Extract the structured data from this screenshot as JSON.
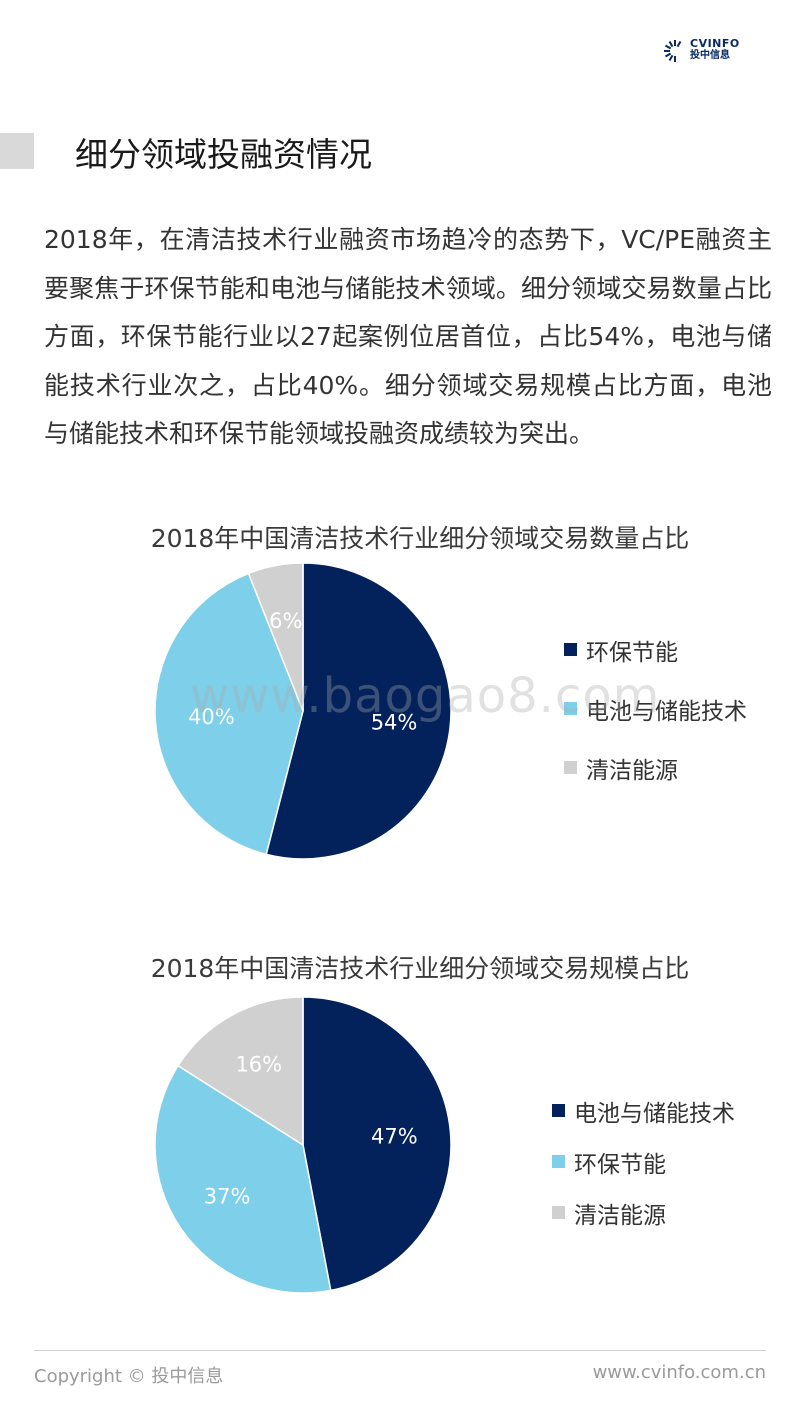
{
  "header": {
    "logo_en": "CVINFO",
    "logo_cn": "投中信息",
    "logo_icon": "cvinfo-logo-icon"
  },
  "section": {
    "title": "细分领域投融资情况",
    "paragraph": "2018年，在清洁技术行业融资市场趋冷的态势下，VC/PE融资主要聚焦于环保节能和电池与储能技术领域。细分领域交易数量占比方面，环保节能行业以27起案例位居首位，占比54%，电池与储能技术行业次之，占比40%。细分领域交易规模占比方面，电池与储能技术和环保节能领域投融资成绩较为突出。"
  },
  "watermark": "www.baogao8.com",
  "footer": {
    "copyright": "Copyright © 投中信息",
    "website": "www.cvinfo.com.cn"
  },
  "chart_data": [
    {
      "type": "pie",
      "title": "2018年中国清洁技术行业细分领域交易数量占比",
      "categories": [
        "环保节能",
        "电池与储能技术",
        "清洁能源"
      ],
      "values": [
        54,
        40,
        6
      ],
      "labels": [
        "54%",
        "40%",
        "6%"
      ],
      "colors": [
        "#03225c",
        "#7ecfe9",
        "#d0d0d0"
      ],
      "label_colors": [
        "#ffffff",
        "#ffffff",
        "#ffffff"
      ],
      "legend_position": "right"
    },
    {
      "type": "pie",
      "title": "2018年中国清洁技术行业细分领域交易规模占比",
      "categories": [
        "电池与储能技术",
        "环保节能",
        "清洁能源"
      ],
      "values": [
        47,
        37,
        16
      ],
      "labels": [
        "47%",
        "37%",
        "16%"
      ],
      "colors": [
        "#03225c",
        "#7ecfe9",
        "#d0d0d0"
      ],
      "label_colors": [
        "#ffffff",
        "#ffffff",
        "#ffffff"
      ],
      "legend_position": "right"
    }
  ]
}
